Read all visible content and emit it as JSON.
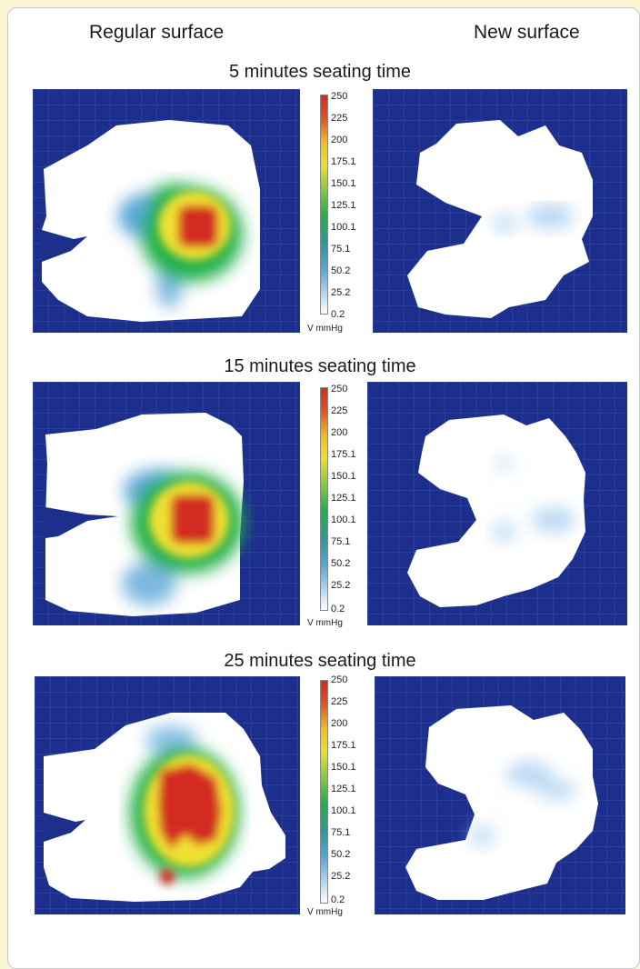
{
  "headers": {
    "left": "Regular surface",
    "right": "New surface"
  },
  "rows": [
    {
      "title": "5 minutes seating time"
    },
    {
      "title": "15 minutes seating time"
    },
    {
      "title": "25 minutes seating time"
    }
  ],
  "scale": {
    "ticks": [
      "250",
      "225",
      "200",
      "175.1",
      "150.1",
      "125.1",
      "100.1",
      "75.1",
      "50.2",
      "25.2",
      "0.2"
    ],
    "unit": "V mmHg"
  },
  "colors": {
    "background": "#fbf6d4",
    "grid_blue": "#1d2f8c",
    "low": "#ffffff",
    "mid_blue": "#5aa5d8",
    "green": "#22b04a",
    "yellow": "#f0e030",
    "red": "#d32a20"
  },
  "icons": [
    "pressure-map",
    "color-scale-bar"
  ]
}
